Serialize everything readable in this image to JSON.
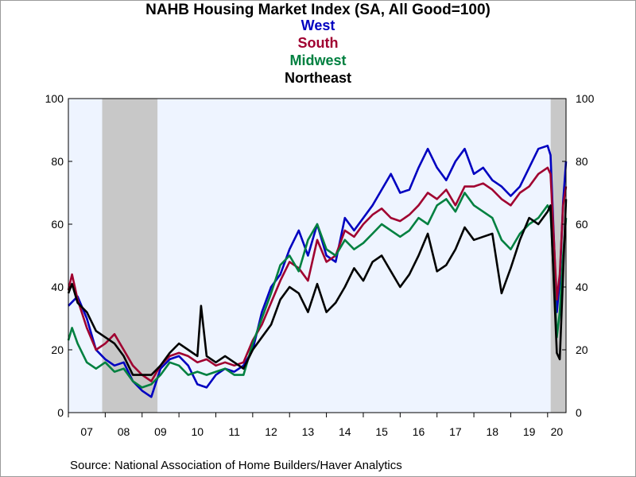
{
  "chart_data": {
    "type": "line",
    "title": "NAHB Housing Market Index (SA, All Good=100)",
    "source": "Source:  National Association of Home Builders/Haver Analytics",
    "ylim": [
      0,
      100
    ],
    "yticks": [
      0,
      20,
      40,
      60,
      80,
      100
    ],
    "xlim": [
      2007.0,
      2020.5
    ],
    "xtick_labels": [
      {
        "label": "07",
        "x": 2007.5
      },
      {
        "label": "08",
        "x": 2008.5
      },
      {
        "label": "09",
        "x": 2009.5
      },
      {
        "label": "10",
        "x": 2010.5
      },
      {
        "label": "11",
        "x": 2011.5
      },
      {
        "label": "12",
        "x": 2012.5
      },
      {
        "label": "13",
        "x": 2013.5
      },
      {
        "label": "14",
        "x": 2014.5
      },
      {
        "label": "15",
        "x": 2015.5
      },
      {
        "label": "16",
        "x": 2016.5
      },
      {
        "label": "17",
        "x": 2017.5
      },
      {
        "label": "18",
        "x": 2018.5
      },
      {
        "label": "19",
        "x": 2019.5
      },
      {
        "label": "20",
        "x": 2020.25
      }
    ],
    "recessions": [
      {
        "start": 2007.917,
        "end": 2009.417
      },
      {
        "start": 2020.083,
        "end": 2020.5
      }
    ],
    "plot_background": "#eef4ff",
    "recession_color": "#c8c8c8",
    "series": [
      {
        "name": "West",
        "color": "#0000c0",
        "points": [
          [
            2007.0,
            34
          ],
          [
            2007.25,
            37
          ],
          [
            2007.5,
            30
          ],
          [
            2007.75,
            20
          ],
          [
            2008.0,
            17
          ],
          [
            2008.25,
            15
          ],
          [
            2008.5,
            16
          ],
          [
            2008.75,
            10
          ],
          [
            2009.0,
            7
          ],
          [
            2009.25,
            5
          ],
          [
            2009.5,
            14
          ],
          [
            2009.75,
            17
          ],
          [
            2010.0,
            18
          ],
          [
            2010.25,
            15
          ],
          [
            2010.5,
            9
          ],
          [
            2010.75,
            8
          ],
          [
            2011.0,
            12
          ],
          [
            2011.25,
            14
          ],
          [
            2011.5,
            13
          ],
          [
            2011.75,
            15
          ],
          [
            2012.0,
            20
          ],
          [
            2012.25,
            32
          ],
          [
            2012.5,
            40
          ],
          [
            2012.75,
            44
          ],
          [
            2013.0,
            52
          ],
          [
            2013.25,
            58
          ],
          [
            2013.5,
            50
          ],
          [
            2013.75,
            60
          ],
          [
            2014.0,
            50
          ],
          [
            2014.25,
            48
          ],
          [
            2014.5,
            62
          ],
          [
            2014.75,
            58
          ],
          [
            2015.0,
            62
          ],
          [
            2015.25,
            66
          ],
          [
            2015.5,
            71
          ],
          [
            2015.75,
            76
          ],
          [
            2016.0,
            70
          ],
          [
            2016.25,
            71
          ],
          [
            2016.5,
            78
          ],
          [
            2016.75,
            84
          ],
          [
            2017.0,
            78
          ],
          [
            2017.25,
            74
          ],
          [
            2017.5,
            80
          ],
          [
            2017.75,
            84
          ],
          [
            2018.0,
            76
          ],
          [
            2018.25,
            78
          ],
          [
            2018.5,
            74
          ],
          [
            2018.75,
            72
          ],
          [
            2019.0,
            69
          ],
          [
            2019.25,
            72
          ],
          [
            2019.5,
            78
          ],
          [
            2019.75,
            84
          ],
          [
            2020.0,
            85
          ],
          [
            2020.08,
            82
          ],
          [
            2020.25,
            32
          ],
          [
            2020.33,
            42
          ],
          [
            2020.42,
            67
          ],
          [
            2020.5,
            80
          ]
        ]
      },
      {
        "name": "South",
        "color": "#a00030",
        "points": [
          [
            2007.0,
            39
          ],
          [
            2007.1,
            44
          ],
          [
            2007.25,
            36
          ],
          [
            2007.5,
            27
          ],
          [
            2007.75,
            20
          ],
          [
            2008.0,
            22
          ],
          [
            2008.25,
            25
          ],
          [
            2008.5,
            20
          ],
          [
            2008.75,
            15
          ],
          [
            2009.0,
            12
          ],
          [
            2009.25,
            10
          ],
          [
            2009.5,
            15
          ],
          [
            2009.75,
            18
          ],
          [
            2010.0,
            19
          ],
          [
            2010.25,
            18
          ],
          [
            2010.5,
            16
          ],
          [
            2010.75,
            17
          ],
          [
            2011.0,
            15
          ],
          [
            2011.25,
            16
          ],
          [
            2011.5,
            15
          ],
          [
            2011.75,
            16
          ],
          [
            2012.0,
            23
          ],
          [
            2012.25,
            28
          ],
          [
            2012.5,
            35
          ],
          [
            2012.75,
            42
          ],
          [
            2013.0,
            48
          ],
          [
            2013.25,
            46
          ],
          [
            2013.5,
            42
          ],
          [
            2013.75,
            55
          ],
          [
            2014.0,
            48
          ],
          [
            2014.25,
            50
          ],
          [
            2014.5,
            58
          ],
          [
            2014.75,
            56
          ],
          [
            2015.0,
            60
          ],
          [
            2015.25,
            63
          ],
          [
            2015.5,
            65
          ],
          [
            2015.75,
            62
          ],
          [
            2016.0,
            61
          ],
          [
            2016.25,
            63
          ],
          [
            2016.5,
            66
          ],
          [
            2016.75,
            70
          ],
          [
            2017.0,
            68
          ],
          [
            2017.25,
            71
          ],
          [
            2017.5,
            66
          ],
          [
            2017.75,
            72
          ],
          [
            2018.0,
            72
          ],
          [
            2018.25,
            73
          ],
          [
            2018.5,
            71
          ],
          [
            2018.75,
            68
          ],
          [
            2019.0,
            66
          ],
          [
            2019.25,
            70
          ],
          [
            2019.5,
            72
          ],
          [
            2019.75,
            76
          ],
          [
            2020.0,
            78
          ],
          [
            2020.08,
            76
          ],
          [
            2020.25,
            36
          ],
          [
            2020.33,
            44
          ],
          [
            2020.42,
            66
          ],
          [
            2020.5,
            72
          ]
        ]
      },
      {
        "name": "Midwest",
        "color": "#008040",
        "points": [
          [
            2007.0,
            23
          ],
          [
            2007.1,
            27
          ],
          [
            2007.25,
            22
          ],
          [
            2007.5,
            16
          ],
          [
            2007.75,
            14
          ],
          [
            2008.0,
            16
          ],
          [
            2008.25,
            13
          ],
          [
            2008.5,
            14
          ],
          [
            2008.75,
            10
          ],
          [
            2009.0,
            8
          ],
          [
            2009.25,
            9
          ],
          [
            2009.5,
            12
          ],
          [
            2009.75,
            16
          ],
          [
            2010.0,
            15
          ],
          [
            2010.25,
            12
          ],
          [
            2010.5,
            13
          ],
          [
            2010.75,
            12
          ],
          [
            2011.0,
            13
          ],
          [
            2011.25,
            14
          ],
          [
            2011.5,
            12
          ],
          [
            2011.75,
            12
          ],
          [
            2012.0,
            22
          ],
          [
            2012.25,
            30
          ],
          [
            2012.5,
            38
          ],
          [
            2012.75,
            47
          ],
          [
            2013.0,
            50
          ],
          [
            2013.25,
            45
          ],
          [
            2013.5,
            55
          ],
          [
            2013.75,
            60
          ],
          [
            2014.0,
            52
          ],
          [
            2014.25,
            50
          ],
          [
            2014.5,
            55
          ],
          [
            2014.75,
            52
          ],
          [
            2015.0,
            54
          ],
          [
            2015.25,
            57
          ],
          [
            2015.5,
            60
          ],
          [
            2015.75,
            58
          ],
          [
            2016.0,
            56
          ],
          [
            2016.25,
            58
          ],
          [
            2016.5,
            62
          ],
          [
            2016.75,
            60
          ],
          [
            2017.0,
            66
          ],
          [
            2017.25,
            68
          ],
          [
            2017.5,
            64
          ],
          [
            2017.75,
            70
          ],
          [
            2018.0,
            66
          ],
          [
            2018.25,
            64
          ],
          [
            2018.5,
            62
          ],
          [
            2018.75,
            55
          ],
          [
            2019.0,
            52
          ],
          [
            2019.25,
            57
          ],
          [
            2019.5,
            60
          ],
          [
            2019.75,
            62
          ],
          [
            2020.0,
            66
          ],
          [
            2020.08,
            64
          ],
          [
            2020.25,
            24
          ],
          [
            2020.33,
            32
          ],
          [
            2020.42,
            50
          ],
          [
            2020.5,
            62
          ]
        ]
      },
      {
        "name": "Northeast",
        "color": "#000000",
        "points": [
          [
            2007.0,
            38
          ],
          [
            2007.1,
            41
          ],
          [
            2007.25,
            35
          ],
          [
            2007.5,
            32
          ],
          [
            2007.75,
            26
          ],
          [
            2008.0,
            24
          ],
          [
            2008.25,
            22
          ],
          [
            2008.5,
            18
          ],
          [
            2008.75,
            12
          ],
          [
            2009.0,
            12
          ],
          [
            2009.25,
            12
          ],
          [
            2009.5,
            15
          ],
          [
            2009.75,
            19
          ],
          [
            2010.0,
            22
          ],
          [
            2010.25,
            20
          ],
          [
            2010.5,
            18
          ],
          [
            2010.6,
            34
          ],
          [
            2010.75,
            18
          ],
          [
            2011.0,
            16
          ],
          [
            2011.25,
            18
          ],
          [
            2011.5,
            16
          ],
          [
            2011.75,
            14
          ],
          [
            2012.0,
            20
          ],
          [
            2012.25,
            24
          ],
          [
            2012.5,
            28
          ],
          [
            2012.75,
            36
          ],
          [
            2013.0,
            40
          ],
          [
            2013.25,
            38
          ],
          [
            2013.5,
            32
          ],
          [
            2013.75,
            41
          ],
          [
            2014.0,
            32
          ],
          [
            2014.25,
            35
          ],
          [
            2014.5,
            40
          ],
          [
            2014.75,
            46
          ],
          [
            2015.0,
            42
          ],
          [
            2015.25,
            48
          ],
          [
            2015.5,
            50
          ],
          [
            2015.75,
            45
          ],
          [
            2016.0,
            40
          ],
          [
            2016.25,
            44
          ],
          [
            2016.5,
            50
          ],
          [
            2016.75,
            57
          ],
          [
            2017.0,
            45
          ],
          [
            2017.25,
            47
          ],
          [
            2017.5,
            52
          ],
          [
            2017.75,
            59
          ],
          [
            2018.0,
            55
          ],
          [
            2018.25,
            56
          ],
          [
            2018.5,
            57
          ],
          [
            2018.75,
            38
          ],
          [
            2019.0,
            46
          ],
          [
            2019.25,
            55
          ],
          [
            2019.5,
            62
          ],
          [
            2019.75,
            60
          ],
          [
            2020.0,
            64
          ],
          [
            2020.08,
            66
          ],
          [
            2020.25,
            19
          ],
          [
            2020.33,
            17
          ],
          [
            2020.42,
            44
          ],
          [
            2020.5,
            68
          ]
        ]
      }
    ]
  }
}
